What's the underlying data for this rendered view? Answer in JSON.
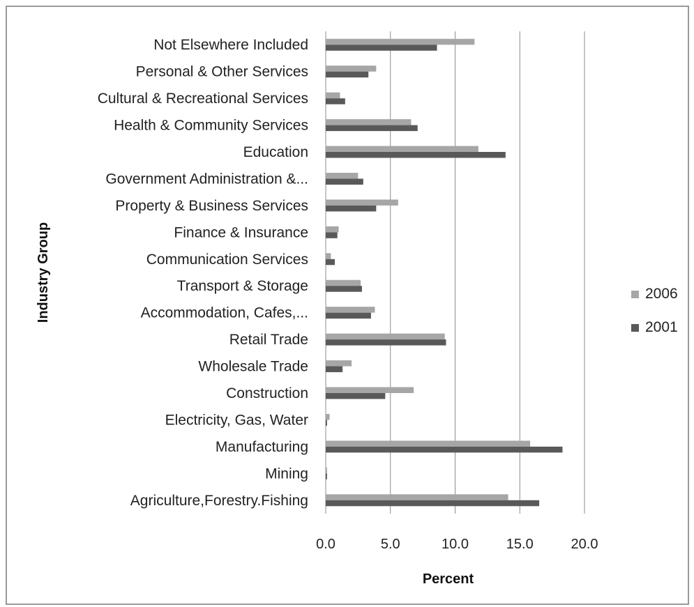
{
  "chart_data": {
    "type": "bar",
    "orientation": "horizontal",
    "categories": [
      "Not Elsewhere Included",
      "Personal & Other Services",
      "Cultural & Recreational Services",
      "Health & Community Services",
      "Education",
      "Government Administration &...",
      "Property & Business Services",
      "Finance & Insurance",
      "Communication Services",
      "Transport & Storage",
      "Accommodation, Cafes,...",
      "Retail Trade",
      "Wholesale Trade",
      "Construction",
      "Electricity, Gas, Water",
      "Manufacturing",
      "Mining",
      "Agriculture,Forestry.Fishing"
    ],
    "series": [
      {
        "name": "2006",
        "color": "#a6a6a6",
        "values": [
          11.5,
          3.9,
          1.1,
          6.6,
          11.8,
          2.5,
          5.6,
          1.0,
          0.4,
          2.7,
          3.8,
          9.2,
          2.0,
          6.8,
          0.3,
          15.8,
          0.1,
          14.1
        ]
      },
      {
        "name": "2001",
        "color": "#595959",
        "values": [
          8.6,
          3.3,
          1.5,
          7.1,
          13.9,
          2.9,
          3.9,
          0.9,
          0.7,
          2.8,
          3.5,
          9.3,
          1.3,
          4.6,
          0.1,
          18.3,
          0.1,
          16.5
        ]
      }
    ],
    "xlabel": "Percent",
    "ylabel": "Industry Group",
    "xlim": [
      0,
      20
    ],
    "xticks": [
      "0.0",
      "5.0",
      "10.0",
      "15.0",
      "20.0"
    ],
    "grid": "vertical",
    "legend_position": "right"
  }
}
